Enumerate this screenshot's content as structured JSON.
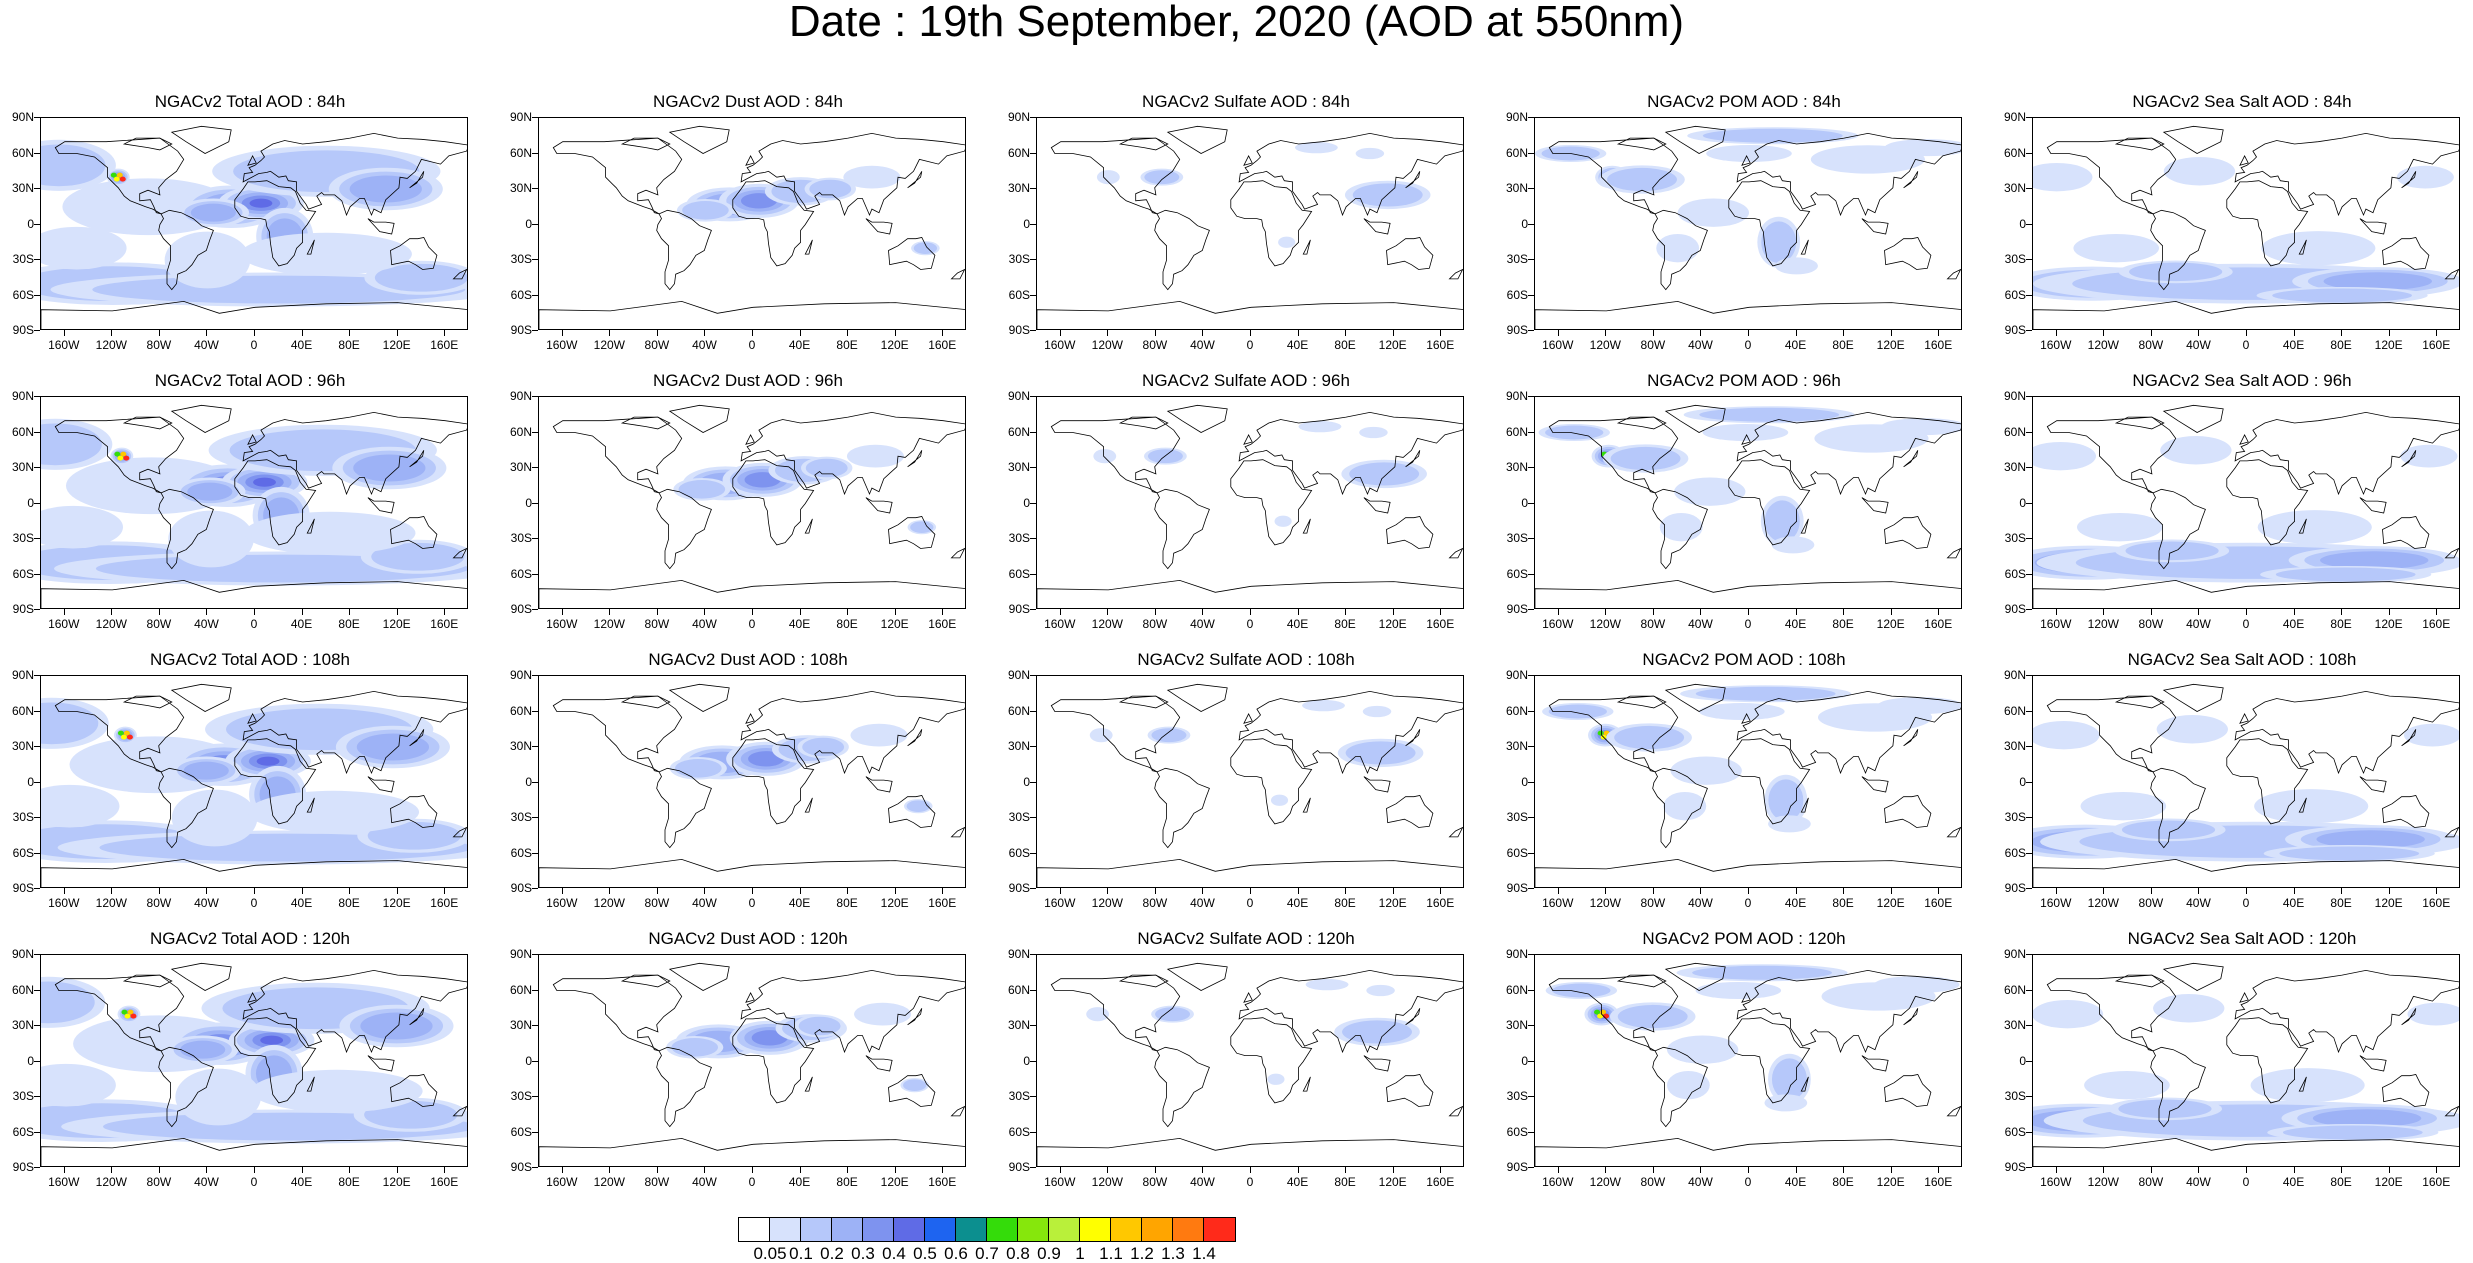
{
  "title": "Date : 19th September, 2020 (AOD at 550nm)",
  "columns": [
    {
      "name": "Total",
      "palette": "total"
    },
    {
      "name": "Dust",
      "palette": "dust"
    },
    {
      "name": "Sulfate",
      "palette": "sulfate"
    },
    {
      "name": "POM",
      "palette": "pom"
    },
    {
      "name": "Sea Salt",
      "palette": "seasalt"
    }
  ],
  "panels": [
    [
      "NGACv2 Total AOD : 84h",
      "NGACv2 Dust AOD : 84h",
      "NGACv2 Sulfate AOD : 84h",
      "NGACv2 POM AOD : 84h",
      "NGACv2 Sea Salt AOD : 84h"
    ],
    [
      "NGACv2 Total AOD : 96h",
      "NGACv2 Dust AOD : 96h",
      "NGACv2 Sulfate AOD : 96h",
      "NGACv2 POM AOD : 96h",
      "NGACv2 Sea Salt AOD : 96h"
    ],
    [
      "NGACv2 Total AOD : 108h",
      "NGACv2 Dust AOD : 108h",
      "NGACv2 Sulfate AOD : 108h",
      "NGACv2 POM AOD : 108h",
      "NGACv2 Sea Salt AOD : 108h"
    ],
    [
      "NGACv2 Total AOD : 120h",
      "NGACv2 Dust AOD : 120h",
      "NGACv2 Sulfate AOD : 120h",
      "NGACv2 POM AOD : 120h",
      "NGACv2 Sea Salt  AOD : 120h"
    ]
  ],
  "lat_labels": [
    "90N",
    "60N",
    "30N",
    "0",
    "30S",
    "60S",
    "90S"
  ],
  "lon_labels": [
    "160W",
    "120W",
    "80W",
    "40W",
    "0",
    "40E",
    "80E",
    "120E",
    "160E"
  ],
  "lon_values": [
    -160,
    -120,
    -80,
    -40,
    0,
    40,
    80,
    120,
    160
  ],
  "lat_values": [
    90,
    60,
    30,
    0,
    -30,
    -60,
    -90
  ],
  "colorbar": {
    "labels": [
      "0.05",
      "0.1",
      "0.2",
      "0.3",
      "0.4",
      "0.5",
      "0.6",
      "0.7",
      "0.8",
      "0.9",
      "1",
      "1.1",
      "1.2",
      "1.3",
      "1.4"
    ],
    "colors": [
      "#ffffff",
      "#d7e2fc",
      "#b6c8fa",
      "#9db2f6",
      "#7e93ef",
      "#5f6be6",
      "#1e64f0",
      "#0c8f8f",
      "#34dc0a",
      "#86e70c",
      "#b9f03a",
      "#ffff00",
      "#ffc800",
      "#ffa500",
      "#ff7a10",
      "#ff2a1a"
    ]
  }
}
